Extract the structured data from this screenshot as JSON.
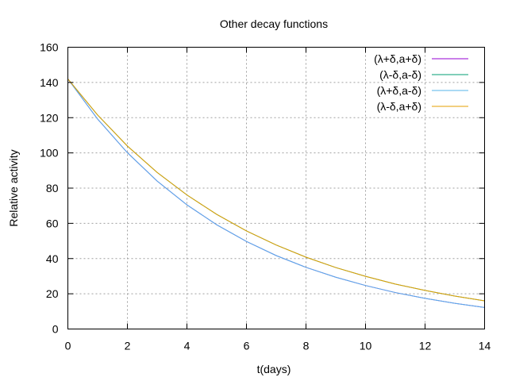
{
  "chart_data": {
    "type": "line",
    "title": "Other decay functions",
    "xlabel": "t(days)",
    "ylabel": "Relative activity",
    "xlim": [
      0,
      14
    ],
    "ylim": [
      0,
      160
    ],
    "xticks": [
      0,
      2,
      4,
      6,
      8,
      10,
      12,
      14
    ],
    "yticks": [
      0,
      20,
      40,
      60,
      80,
      100,
      120,
      140,
      160
    ],
    "grid": true,
    "legend_position": "top-right",
    "x": [
      0,
      1,
      2,
      3,
      4,
      5,
      6,
      7,
      8,
      9,
      10,
      11,
      12,
      13,
      14
    ],
    "series": [
      {
        "name": "(λ+δ,a+δ)",
        "color": "#9400d3",
        "values": [
          142.0,
          119.2,
          100.1,
          84.0,
          70.5,
          59.2,
          49.7,
          41.7,
          35.0,
          29.4,
          24.7,
          20.7,
          17.4,
          14.6,
          12.2
        ]
      },
      {
        "name": "(λ-δ,a-δ)",
        "color": "#009e73",
        "values": [
          142.0,
          121.5,
          103.9,
          88.9,
          76.1,
          65.1,
          55.7,
          47.7,
          40.8,
          34.9,
          29.9,
          25.5,
          21.9,
          18.7,
          16.0
        ]
      },
      {
        "name": "(λ+δ,a-δ)",
        "color": "#56b4e9",
        "values": [
          142.0,
          119.2,
          100.1,
          84.0,
          70.5,
          59.2,
          49.7,
          41.7,
          35.0,
          29.4,
          24.7,
          20.7,
          17.4,
          14.6,
          12.2
        ]
      },
      {
        "name": "(λ-δ,a+δ)",
        "color": "#e69f00",
        "values": [
          142.0,
          121.5,
          103.9,
          88.9,
          76.1,
          65.1,
          55.7,
          47.7,
          40.8,
          34.9,
          29.9,
          25.5,
          21.9,
          18.7,
          16.0
        ]
      }
    ]
  }
}
